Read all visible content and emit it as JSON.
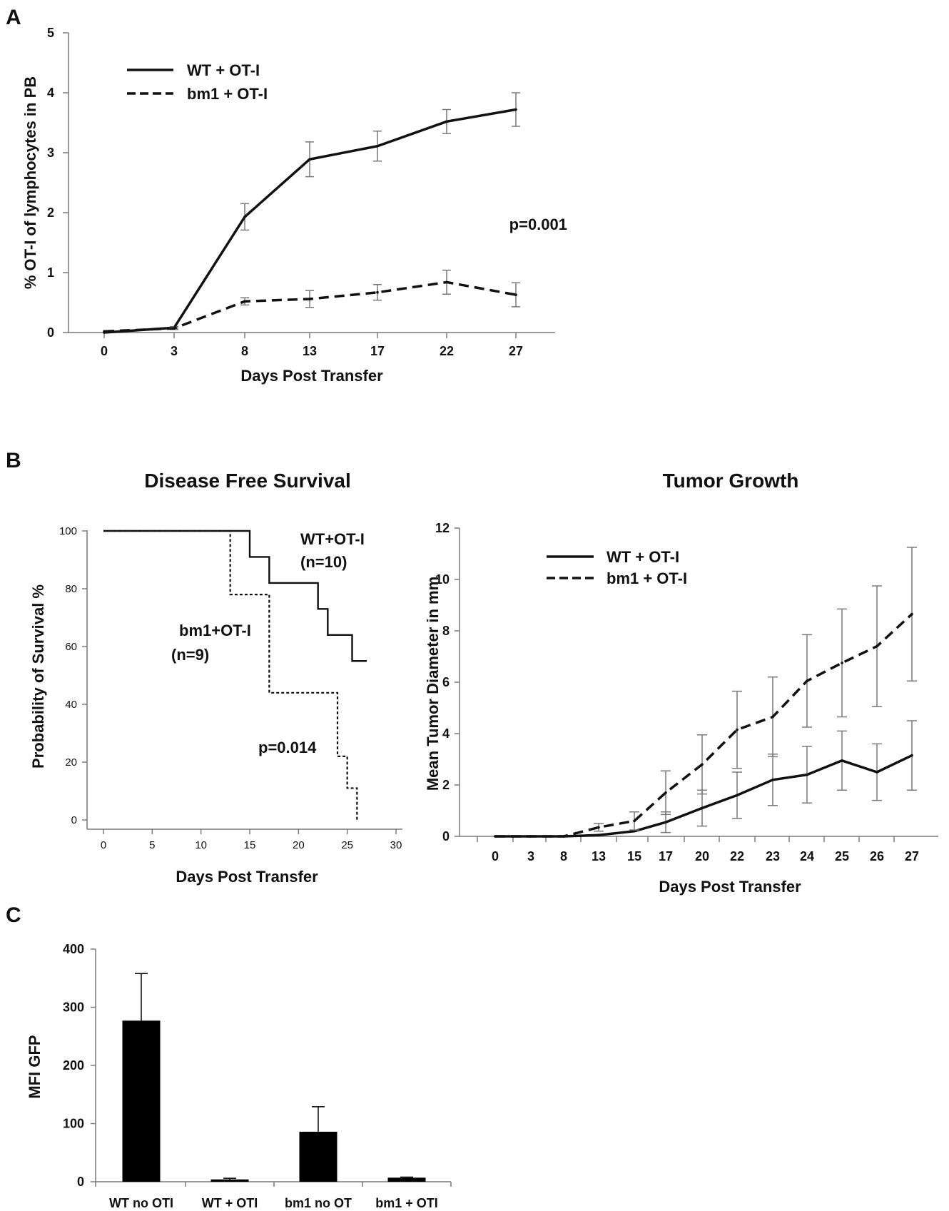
{
  "panels": {
    "a": {
      "letter": "A"
    },
    "b": {
      "letter": "B"
    },
    "c": {
      "letter": "C"
    }
  },
  "chart_data": [
    {
      "id": "a",
      "type": "line",
      "title": "",
      "xlabel": "Days Post Transfer",
      "ylabel": "% OT-I of lymphocytes in PB",
      "categories": [
        "0",
        "3",
        "8",
        "13",
        "17",
        "22",
        "27"
      ],
      "ylim": [
        0,
        5
      ],
      "yticks": [
        "0",
        "1",
        "2",
        "3",
        "4",
        "5"
      ],
      "series": [
        {
          "name": "WT + OT-I",
          "style": "solid",
          "values": [
            0.0,
            0.08,
            1.93,
            2.89,
            3.11,
            3.52,
            3.72
          ],
          "errors": [
            0.0,
            0.02,
            0.22,
            0.29,
            0.25,
            0.2,
            0.28
          ]
        },
        {
          "name": "bm1 + OT-I",
          "style": "dashed",
          "values": [
            0.02,
            0.07,
            0.52,
            0.56,
            0.67,
            0.84,
            0.63
          ],
          "errors": [
            0.0,
            0.02,
            0.06,
            0.14,
            0.13,
            0.2,
            0.2
          ]
        }
      ],
      "annotations": [
        "p=0.001"
      ],
      "grid": false,
      "legend": "top-left"
    },
    {
      "id": "b_survival",
      "type": "line",
      "title": "Disease Free Survival",
      "xlabel": "Days Post Transfer",
      "ylabel": "Probability of Survival %",
      "xlim": [
        0,
        30
      ],
      "ylim": [
        0,
        100
      ],
      "xticks": [
        "0",
        "5",
        "10",
        "15",
        "20",
        "25",
        "30"
      ],
      "yticks": [
        "0",
        "20",
        "40",
        "60",
        "80",
        "100"
      ],
      "series": [
        {
          "name": "WT+OT-I",
          "n": "(n=10)",
          "style": "solid",
          "step": true,
          "x": [
            0,
            15,
            15,
            17,
            17,
            22,
            22,
            23,
            23,
            24,
            24,
            25.5,
            25.5,
            27
          ],
          "y": [
            100,
            100,
            91,
            91,
            82,
            82,
            73,
            73,
            64,
            64,
            64,
            64,
            55,
            55
          ]
        },
        {
          "name": "bm1+OT-I",
          "n": "(n=9)",
          "style": "dotted",
          "step": true,
          "x": [
            0,
            13,
            13,
            17,
            17,
            24,
            24,
            25,
            25,
            26,
            26
          ],
          "y": [
            100,
            100,
            78,
            78,
            44,
            44,
            22,
            22,
            11,
            11,
            0
          ]
        }
      ],
      "annotations": [
        "p=0.014"
      ],
      "grid": false
    },
    {
      "id": "b_tumor",
      "type": "line",
      "title": "Tumor Growth",
      "xlabel": "Days Post Transfer",
      "ylabel": "Mean Tumor Diameter in mm",
      "categories": [
        "0",
        "3",
        "8",
        "13",
        "15",
        "17",
        "20",
        "22",
        "23",
        "24",
        "25",
        "26",
        "27"
      ],
      "ylim": [
        0,
        12
      ],
      "yticks": [
        "0",
        "2",
        "4",
        "6",
        "8",
        "10",
        "12"
      ],
      "series": [
        {
          "name": "WT + OT-I",
          "style": "solid",
          "values": [
            0,
            0,
            0,
            0.05,
            0.2,
            0.55,
            1.1,
            1.6,
            2.2,
            2.4,
            2.95,
            2.5,
            3.15
          ],
          "errors": [
            0,
            0,
            0,
            0,
            0.05,
            0.4,
            0.7,
            0.9,
            1.0,
            1.1,
            1.15,
            1.1,
            1.35
          ]
        },
        {
          "name": "bm1 + OT-I",
          "style": "dashed",
          "values": [
            0,
            0,
            0,
            0.35,
            0.6,
            1.7,
            2.8,
            4.15,
            4.65,
            6.05,
            6.75,
            7.4,
            8.65
          ],
          "errors": [
            0,
            0,
            0,
            0.15,
            0.35,
            0.85,
            1.15,
            1.5,
            1.55,
            1.8,
            2.1,
            2.35,
            2.6
          ]
        }
      ],
      "grid": false,
      "legend": "top-left"
    },
    {
      "id": "c",
      "type": "bar",
      "title": "",
      "xlabel": "",
      "ylabel": "MFI GFP",
      "categories": [
        "WT no OTI",
        "WT + OTI",
        "bm1 no OT",
        "bm1 + OTI"
      ],
      "values": [
        277,
        4,
        86,
        7
      ],
      "errors": [
        81,
        2,
        43,
        1
      ],
      "ylim": [
        0,
        400
      ],
      "yticks": [
        "0",
        "100",
        "200",
        "300",
        "400"
      ],
      "grid": false
    }
  ]
}
